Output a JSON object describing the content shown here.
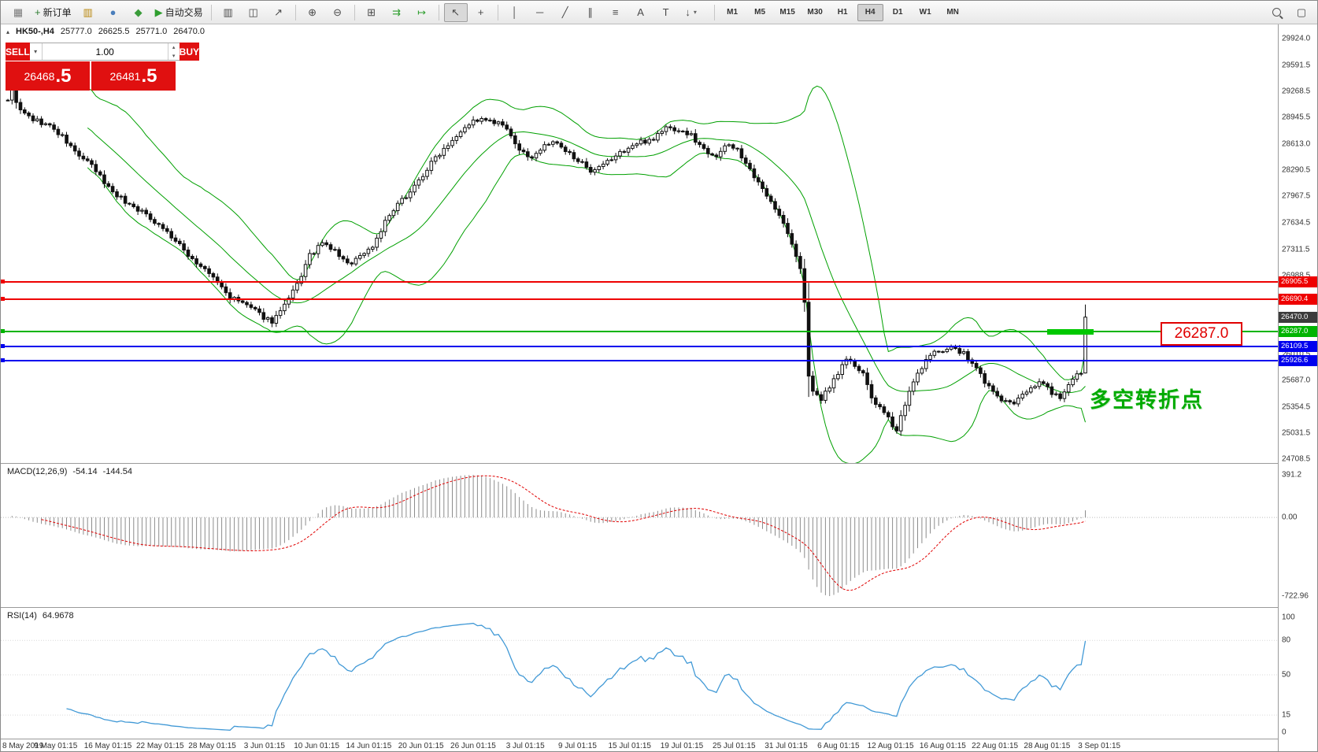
{
  "toolbar": {
    "groups": [
      {
        "buttons": [
          {
            "name": "terminal-button",
            "icon": "terminal",
            "glyph": "▦",
            "color": "#7a7a7a"
          },
          {
            "name": "new-order-button",
            "icon": "new-order",
            "glyph": "+",
            "color": "#2e7d32",
            "label": "新订单"
          },
          {
            "name": "chart-window-button",
            "icon": "chart-window",
            "glyph": "▥",
            "color": "#b8860b"
          },
          {
            "name": "profile-button",
            "icon": "profile",
            "glyph": "●",
            "color": "#4a7ebb"
          },
          {
            "name": "alerts-button",
            "icon": "alerts",
            "glyph": "◆",
            "color": "#3a9c3a"
          },
          {
            "name": "autotrading-button",
            "icon": "autotrading-play",
            "glyph": "▶",
            "color": "#2e9e2e",
            "label": "自动交易"
          }
        ]
      },
      {
        "buttons": [
          {
            "name": "bar-chart-button",
            "icon": "bar-chart",
            "glyph": "▥"
          },
          {
            "name": "candlestick-chart-button",
            "icon": "candlestick-chart",
            "glyph": "◫"
          },
          {
            "name": "line-chart-button",
            "icon": "line-chart",
            "glyph": "↗"
          }
        ]
      },
      {
        "buttons": [
          {
            "name": "zoom-in-button",
            "icon": "zoom-in",
            "glyph": "⊕"
          },
          {
            "name": "zoom-out-button",
            "icon": "zoom-out",
            "glyph": "⊖"
          }
        ]
      },
      {
        "buttons": [
          {
            "name": "tile-windows-button",
            "icon": "tile-windows",
            "glyph": "⊞"
          },
          {
            "name": "auto-scroll-button",
            "icon": "auto-scroll",
            "glyph": "⇉",
            "color": "#2e9e2e"
          },
          {
            "name": "chart-shift-button",
            "icon": "chart-shift",
            "glyph": "↦",
            "color": "#2e9e2e"
          }
        ]
      },
      {
        "buttons": [
          {
            "name": "cursor-button",
            "icon": "cursor",
            "glyph": "↖",
            "active": true
          },
          {
            "name": "crosshair-button",
            "icon": "crosshair",
            "glyph": "+"
          }
        ]
      },
      {
        "buttons": [
          {
            "name": "vertical-line-button",
            "icon": "vertical-line",
            "glyph": "│"
          },
          {
            "name": "horizontal-line-button",
            "icon": "horizontal-line",
            "glyph": "─"
          },
          {
            "name": "trendline-button",
            "icon": "trendline",
            "glyph": "╱"
          },
          {
            "name": "channel-button",
            "icon": "channel",
            "glyph": "∥"
          },
          {
            "name": "fibonacci-button",
            "icon": "fibonacci",
            "glyph": "≡"
          },
          {
            "name": "text-button",
            "icon": "text",
            "glyph": "A"
          },
          {
            "name": "text-label-button",
            "icon": "text-label",
            "glyph": "T"
          },
          {
            "name": "arrows-button",
            "icon": "arrows",
            "glyph": "↓",
            "dropdown": true
          }
        ]
      }
    ],
    "timeframes": [
      {
        "label": "M1"
      },
      {
        "label": "M5"
      },
      {
        "label": "M15"
      },
      {
        "label": "M30"
      },
      {
        "label": "H1"
      },
      {
        "label": "H4",
        "active": true
      },
      {
        "label": "D1"
      },
      {
        "label": "W1"
      },
      {
        "label": "MN"
      }
    ]
  },
  "chart": {
    "symbol_info": {
      "symbol": "HK50-,H4",
      "open": "25777.0",
      "high": "26625.5",
      "low": "25771.0",
      "close": "26470.0"
    },
    "one_click": {
      "sell_label": "SELL",
      "buy_label": "BUY",
      "volume": "1.00",
      "sell_main": "26468",
      "sell_big": ".5",
      "buy_main": "26481",
      "buy_big": ".5"
    },
    "price_callout": {
      "text": "26287.0"
    },
    "annotation": {
      "text": "多空转折点",
      "color": "#00aa00"
    },
    "levels": [
      {
        "label": "26905.5",
        "value": 26905.5,
        "color": "#ee0000",
        "thickness": 2
      },
      {
        "label": "26690.4",
        "value": 26690.4,
        "color": "#ee0000",
        "thickness": 2
      },
      {
        "label": "26470.0",
        "value": 26470.0,
        "color": "#3c3c3c",
        "chip_only": true
      },
      {
        "label": "26287.0",
        "value": 26287.0,
        "color": "#00b400",
        "thickness": 2
      },
      {
        "label": "26109.5",
        "value": 26109.5,
        "color": "#0000ee",
        "thickness": 2
      },
      {
        "label": "25926.6",
        "value": 25926.6,
        "color": "#0000ee",
        "thickness": 2
      }
    ],
    "y_axis_ticks": [
      "29924.0",
      "29591.5",
      "29268.5",
      "28945.5",
      "28613.0",
      "28290.5",
      "27967.5",
      "27634.5",
      "27311.5",
      "26988.5",
      "26010.5",
      "25687.0",
      "25354.5",
      "25031.5",
      "24708.5"
    ]
  },
  "macd": {
    "label": "MACD(12,26,9)",
    "value1": "-54.14",
    "value2": "-144.54",
    "axis": {
      "max": "391.2",
      "zero": "0.00",
      "min": "-722.96"
    }
  },
  "rsi": {
    "label": "RSI(14)",
    "value": "64.9678",
    "axis": [
      "100",
      "80",
      "50",
      "15",
      "0"
    ]
  },
  "time_axis": [
    "8 May 2019",
    "9 May 01:15",
    "16 May 01:15",
    "22 May 01:15",
    "28 May 01:15",
    "3 Jun 01:15",
    "10 Jun 01:15",
    "14 Jun 01:15",
    "20 Jun 01:15",
    "26 Jun 01:15",
    "3 Jul 01:15",
    "9 Jul 01:15",
    "15 Jul 01:15",
    "19 Jul 01:15",
    "25 Jul 01:15",
    "31 Jul 01:15",
    "6 Aug 01:15",
    "12 Aug 01:15",
    "16 Aug 01:15",
    "22 Aug 01:15",
    "28 Aug 01:15",
    "3 Sep 01:15"
  ],
  "colors": {
    "bollinger": "#00a000",
    "candle_up_fill": "#ffffff",
    "candle_down_fill": "#111111",
    "candle_stroke": "#111111",
    "macd_histogram": "#8c8c8c",
    "macd_signal": "#e00000",
    "rsi_line": "#4199d6",
    "level_red": "#ee0000",
    "level_blue": "#0000ee",
    "level_green": "#00b400",
    "current_price_chip": "#3c3c3c",
    "panel_red": "#e01010",
    "callout_red": "#e00000",
    "highlight_green": "#00c800"
  },
  "chart_data": {
    "type": "candlestick",
    "symbol": "HK50-",
    "timeframe": "H4",
    "bars": 258,
    "seed": 9,
    "y_range": {
      "top": 30100,
      "bottom": 24660
    },
    "last_bar": {
      "open": 25777.0,
      "high": 26625.5,
      "low": 25771.0,
      "close": 26470.0
    },
    "indicators": {
      "bollinger": {
        "period": 20,
        "deviation": 2
      },
      "macd": {
        "fast": 12,
        "slow": 26,
        "signal": 9
      },
      "rsi": {
        "period": 14
      }
    },
    "macd_scale": {
      "max": 391.2,
      "min": -722.96
    },
    "price_anchors": [
      [
        0,
        29180
      ],
      [
        1,
        29290
      ],
      [
        3,
        29020
      ],
      [
        6,
        28920
      ],
      [
        10,
        28840
      ],
      [
        13,
        28700
      ],
      [
        16,
        28520
      ],
      [
        20,
        28340
      ],
      [
        24,
        28080
      ],
      [
        28,
        27900
      ],
      [
        31,
        27810
      ],
      [
        34,
        27700
      ],
      [
        37,
        27580
      ],
      [
        41,
        27350
      ],
      [
        45,
        27140
      ],
      [
        49,
        26960
      ],
      [
        53,
        26710
      ],
      [
        57,
        26620
      ],
      [
        60,
        26500
      ],
      [
        63,
        26420
      ],
      [
        66,
        26600
      ],
      [
        69,
        26870
      ],
      [
        72,
        27230
      ],
      [
        75,
        27380
      ],
      [
        78,
        27290
      ],
      [
        81,
        27120
      ],
      [
        84,
        27230
      ],
      [
        87,
        27350
      ],
      [
        90,
        27650
      ],
      [
        94,
        27920
      ],
      [
        98,
        28160
      ],
      [
        102,
        28450
      ],
      [
        106,
        28680
      ],
      [
        109,
        28840
      ],
      [
        112,
        28920
      ],
      [
        115,
        28890
      ],
      [
        118,
        28850
      ],
      [
        121,
        28620
      ],
      [
        124,
        28430
      ],
      [
        127,
        28550
      ],
      [
        130,
        28650
      ],
      [
        133,
        28520
      ],
      [
        136,
        28430
      ],
      [
        139,
        28240
      ],
      [
        142,
        28350
      ],
      [
        145,
        28470
      ],
      [
        148,
        28570
      ],
      [
        151,
        28640
      ],
      [
        154,
        28690
      ],
      [
        157,
        28820
      ],
      [
        160,
        28790
      ],
      [
        163,
        28720
      ],
      [
        166,
        28550
      ],
      [
        169,
        28480
      ],
      [
        172,
        28610
      ],
      [
        174,
        28560
      ],
      [
        176,
        28360
      ],
      [
        179,
        28120
      ],
      [
        182,
        27930
      ],
      [
        185,
        27620
      ],
      [
        187,
        27380
      ],
      [
        189,
        27050
      ],
      [
        190,
        26680
      ],
      [
        191,
        25750
      ],
      [
        192,
        25520
      ],
      [
        194,
        25450
      ],
      [
        196,
        25620
      ],
      [
        198,
        25780
      ],
      [
        200,
        25960
      ],
      [
        202,
        25860
      ],
      [
        204,
        25750
      ],
      [
        206,
        25480
      ],
      [
        208,
        25330
      ],
      [
        210,
        25200
      ],
      [
        212,
        25080
      ],
      [
        214,
        25400
      ],
      [
        216,
        25650
      ],
      [
        218,
        25860
      ],
      [
        220,
        25980
      ],
      [
        222,
        26060
      ],
      [
        225,
        26090
      ],
      [
        228,
        26010
      ],
      [
        231,
        25830
      ],
      [
        234,
        25600
      ],
      [
        237,
        25440
      ],
      [
        240,
        25380
      ],
      [
        243,
        25560
      ],
      [
        246,
        25680
      ],
      [
        249,
        25540
      ],
      [
        251,
        25470
      ],
      [
        253,
        25600
      ],
      [
        255,
        25740
      ],
      [
        256,
        25780
      ],
      [
        257,
        26470
      ]
    ]
  }
}
